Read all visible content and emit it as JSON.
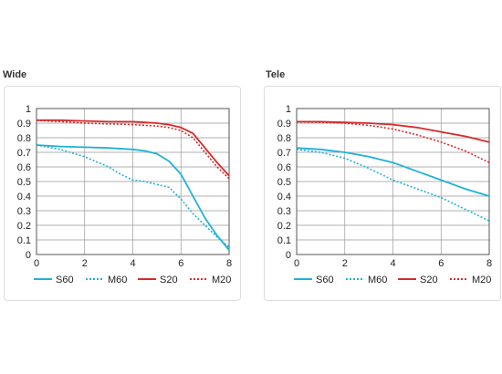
{
  "colors": {
    "cyan": "#1fb1d8",
    "red": "#d82a2a",
    "grid": "#999999",
    "frame": "#555555"
  },
  "chart_data": [
    {
      "type": "line",
      "title": "Wide",
      "xlim": [
        0,
        8
      ],
      "ylim": [
        0,
        1
      ],
      "x_ticks": [
        "0",
        "2",
        "4",
        "6",
        "8"
      ],
      "y_ticks": [
        "0",
        "0.1",
        "0.2",
        "0.3",
        "0.4",
        "0.5",
        "0.6",
        "0.7",
        "0.8",
        "0.9",
        "1"
      ],
      "grid": true,
      "legend_position": "bottom",
      "series": [
        {
          "name": "S60",
          "color": "cyan",
          "dashed": false,
          "x": [
            0,
            1,
            2,
            3,
            4,
            4.5,
            5,
            5.5,
            6,
            6.5,
            7,
            7.5,
            8
          ],
          "y": [
            0.75,
            0.74,
            0.735,
            0.73,
            0.72,
            0.71,
            0.69,
            0.64,
            0.55,
            0.4,
            0.25,
            0.13,
            0.03
          ]
        },
        {
          "name": "M60",
          "color": "cyan",
          "dashed": true,
          "x": [
            0,
            1,
            2,
            3,
            3.5,
            4,
            4.5,
            5,
            5.5,
            6,
            6.5,
            7,
            7.5,
            8
          ],
          "y": [
            0.75,
            0.72,
            0.67,
            0.6,
            0.55,
            0.51,
            0.5,
            0.48,
            0.46,
            0.38,
            0.28,
            0.2,
            0.12,
            0.05
          ]
        },
        {
          "name": "S20",
          "color": "red",
          "dashed": false,
          "x": [
            0,
            1,
            2,
            3,
            4,
            4.5,
            5,
            5.5,
            6,
            6.5,
            7,
            7.5,
            8
          ],
          "y": [
            0.92,
            0.92,
            0.915,
            0.91,
            0.91,
            0.905,
            0.9,
            0.89,
            0.87,
            0.83,
            0.73,
            0.63,
            0.54
          ]
        },
        {
          "name": "M20",
          "color": "red",
          "dashed": true,
          "x": [
            0,
            1,
            2,
            3,
            4,
            5,
            5.5,
            6,
            6.5,
            7,
            7.5,
            8
          ],
          "y": [
            0.92,
            0.91,
            0.9,
            0.895,
            0.89,
            0.88,
            0.87,
            0.85,
            0.8,
            0.7,
            0.6,
            0.52
          ]
        }
      ]
    },
    {
      "type": "line",
      "title": "Tele",
      "xlim": [
        0,
        8
      ],
      "ylim": [
        0,
        1
      ],
      "x_ticks": [
        "0",
        "2",
        "4",
        "6",
        "8"
      ],
      "y_ticks": [
        "0",
        "0.1",
        "0.2",
        "0.3",
        "0.4",
        "0.5",
        "0.6",
        "0.7",
        "0.8",
        "0.9",
        "1"
      ],
      "grid": true,
      "legend_position": "bottom",
      "series": [
        {
          "name": "S60",
          "color": "cyan",
          "dashed": false,
          "x": [
            0,
            1,
            2,
            3,
            4,
            5,
            6,
            7,
            8
          ],
          "y": [
            0.73,
            0.72,
            0.7,
            0.67,
            0.63,
            0.57,
            0.51,
            0.45,
            0.4
          ]
        },
        {
          "name": "M60",
          "color": "cyan",
          "dashed": true,
          "x": [
            0,
            1,
            2,
            3,
            4,
            5,
            6,
            7,
            8
          ],
          "y": [
            0.72,
            0.7,
            0.66,
            0.59,
            0.51,
            0.45,
            0.39,
            0.31,
            0.23
          ]
        },
        {
          "name": "S20",
          "color": "red",
          "dashed": false,
          "x": [
            0,
            1,
            2,
            3,
            4,
            5,
            6,
            7,
            8
          ],
          "y": [
            0.91,
            0.91,
            0.905,
            0.9,
            0.89,
            0.87,
            0.84,
            0.81,
            0.77
          ]
        },
        {
          "name": "M20",
          "color": "red",
          "dashed": true,
          "x": [
            0,
            1,
            2,
            3,
            4,
            5,
            6,
            7,
            8
          ],
          "y": [
            0.91,
            0.905,
            0.9,
            0.885,
            0.86,
            0.82,
            0.77,
            0.71,
            0.63
          ]
        }
      ]
    }
  ]
}
